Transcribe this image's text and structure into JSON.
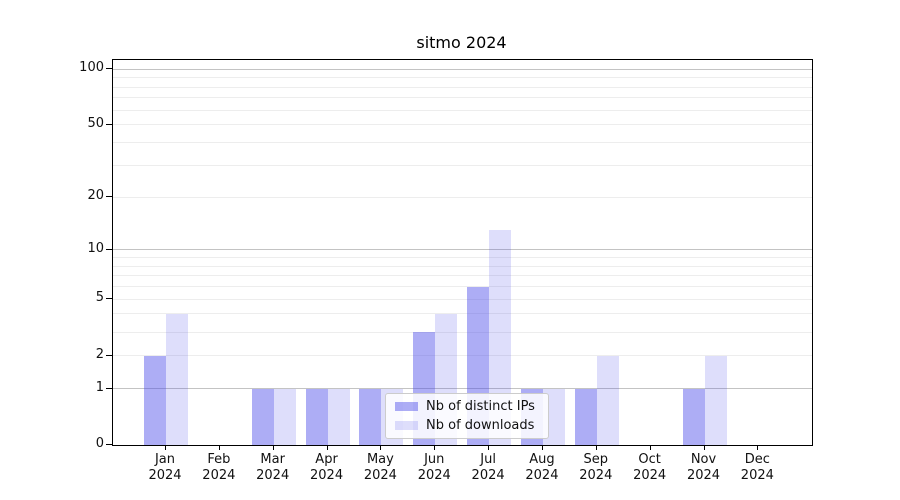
{
  "title": "sitmo 2024",
  "legend": {
    "items": [
      {
        "label": "Nb of distinct IPs",
        "key": "ips"
      },
      {
        "label": "Nb of downloads",
        "key": "downloads"
      }
    ]
  },
  "colors": {
    "ips_fill": "rgba(73,73,232,0.45)",
    "downloads_fill": "rgba(73,73,232,0.18)",
    "grid_minor": "#ededed",
    "grid_major": "#c3c3c3",
    "axis_line": "#000000",
    "legend_border": "#cccccc",
    "legend_bg": "rgba(255,255,255,0.85)",
    "text": "#111111"
  },
  "y_axis": {
    "tick_labels": [
      "100",
      "50",
      "20",
      "10",
      "5",
      "2",
      "1",
      "0"
    ],
    "tick_values": [
      100,
      50,
      20,
      10,
      5,
      2,
      1,
      0
    ],
    "minor_grid_values": [
      2,
      3,
      4,
      5,
      6,
      7,
      8,
      9,
      20,
      30,
      40,
      50,
      60,
      70,
      80,
      90
    ],
    "major_grid_values": [
      1,
      10,
      100
    ]
  },
  "x_axis": {
    "labels": [
      {
        "month": "Jan",
        "year": "2024"
      },
      {
        "month": "Feb",
        "year": "2024"
      },
      {
        "month": "Mar",
        "year": "2024"
      },
      {
        "month": "Apr",
        "year": "2024"
      },
      {
        "month": "May",
        "year": "2024"
      },
      {
        "month": "Jun",
        "year": "2024"
      },
      {
        "month": "Jul",
        "year": "2024"
      },
      {
        "month": "Aug",
        "year": "2024"
      },
      {
        "month": "Sep",
        "year": "2024"
      },
      {
        "month": "Oct",
        "year": "2024"
      },
      {
        "month": "Nov",
        "year": "2024"
      },
      {
        "month": "Dec",
        "year": "2024"
      }
    ]
  },
  "chart_data": {
    "type": "bar",
    "title": "sitmo 2024",
    "categories": [
      "Jan 2024",
      "Feb 2024",
      "Mar 2024",
      "Apr 2024",
      "May 2024",
      "Jun 2024",
      "Jul 2024",
      "Aug 2024",
      "Sep 2024",
      "Oct 2024",
      "Nov 2024",
      "Dec 2024"
    ],
    "series": [
      {
        "name": "Nb of distinct IPs",
        "values": [
          2,
          0,
          1,
          1,
          1,
          3,
          6,
          1,
          1,
          0,
          1,
          0
        ]
      },
      {
        "name": "Nb of downloads",
        "values": [
          4,
          0,
          1,
          1,
          1,
          4,
          13,
          1,
          2,
          0,
          2,
          0
        ]
      }
    ],
    "y_scale": "log1p",
    "y_ticks": [
      0,
      1,
      2,
      5,
      10,
      20,
      50,
      100
    ],
    "ylim": [
      0,
      112
    ],
    "grid": true,
    "legend_position": "lower-center"
  }
}
